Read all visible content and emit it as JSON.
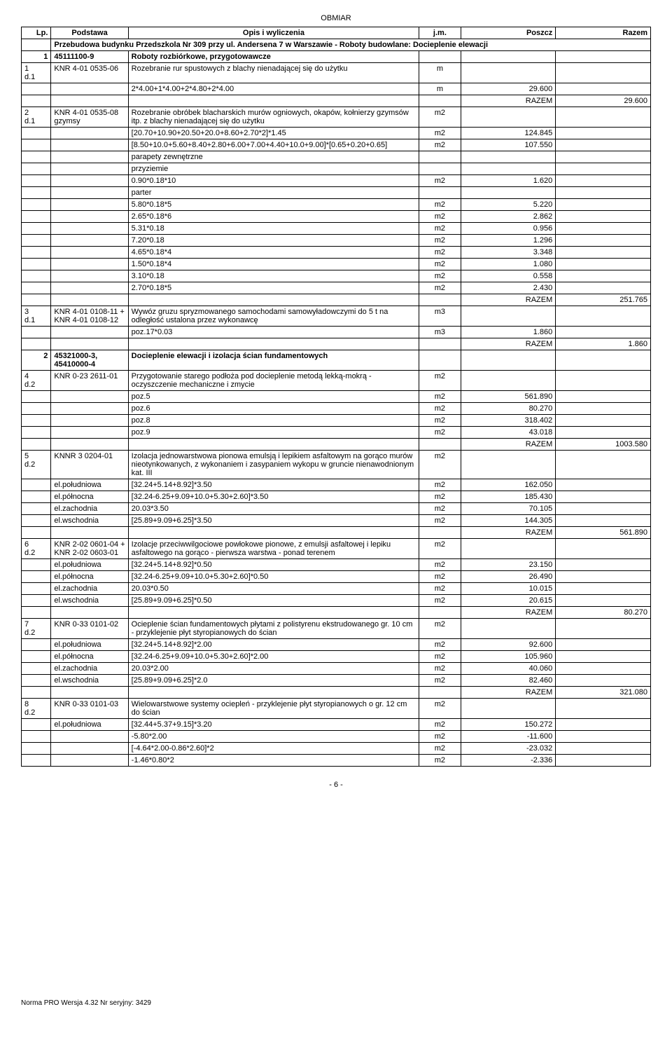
{
  "header": "OBMIAR",
  "columns": {
    "lp": "Lp.",
    "podstawa": "Podstawa",
    "opis": "Opis i wyliczenia",
    "jm": "j.m.",
    "poszcz": "Poszcz",
    "razem": "Razem"
  },
  "project_title": "Przebudowa budynku Przedszkola Nr 309 przy ul. Andersena 7 w Warszawie - Roboty budowlane: Docieplenie elewacji",
  "sections": [
    {
      "lp": "1",
      "podstawa": "45111100-9",
      "title": "Roboty rozbiórkowe, przygotowawcze"
    },
    {
      "lp": "2",
      "podstawa": "45321000-3, 45410000-4",
      "title": "Docieplenie elewacji i izolacja ścian fundamentowych"
    }
  ],
  "rows": [
    {
      "lp": "1",
      "dref": "d.1",
      "pod": "KNR 4-01 0535-06",
      "opis": "Rozebranie rur spustowych z blachy nienadającej się do użytku",
      "jm": "m",
      "lines": [
        {
          "t": "2*4.00+1*4.00+2*4.80+2*4.00",
          "jm": "m",
          "v": "29.600"
        }
      ],
      "razem": "29.600"
    },
    {
      "lp": "2",
      "dref": "d.1",
      "pod": "KNR 4-01 0535-08 gzymsy",
      "opis": "Rozebranie obróbek blacharskich murów ogniowych, okapów, kołnierzy gzymsów itp. z blachy nienadającej się do użytku",
      "jm": "m2",
      "lines": [
        {
          "t": "[20.70+10.90+20.50+20.0+8.60+2.70*2]*1.45",
          "jm": "m2",
          "v": "124.845"
        },
        {
          "t": "[8.50+10.0+5.60+8.40+2.80+6.00+7.00+4.40+10.0+9.00]*[0.65+0.20+0.65]",
          "jm": "m2",
          "v": "107.550"
        },
        {
          "t": "parapety zewnętrzne",
          "jm": "",
          "v": ""
        },
        {
          "t": "przyziemie",
          "jm": "",
          "v": ""
        },
        {
          "t": "0.90*0.18*10",
          "jm": "m2",
          "v": "1.620"
        },
        {
          "t": "parter",
          "jm": "",
          "v": ""
        },
        {
          "t": "5.80*0.18*5",
          "jm": "m2",
          "v": "5.220"
        },
        {
          "t": "2.65*0.18*6",
          "jm": "m2",
          "v": "2.862"
        },
        {
          "t": "5.31*0.18",
          "jm": "m2",
          "v": "0.956"
        },
        {
          "t": "7.20*0.18",
          "jm": "m2",
          "v": "1.296"
        },
        {
          "t": "4.65*0.18*4",
          "jm": "m2",
          "v": "3.348"
        },
        {
          "t": "1.50*0.18*4",
          "jm": "m2",
          "v": "1.080"
        },
        {
          "t": "3.10*0.18",
          "jm": "m2",
          "v": "0.558"
        },
        {
          "t": "2.70*0.18*5",
          "jm": "m2",
          "v": "2.430"
        }
      ],
      "razem": "251.765"
    },
    {
      "lp": "3",
      "dref": "d.1",
      "pod": "KNR 4-01 0108-11 + KNR 4-01 0108-12",
      "opis": "Wywóz gruzu spryzmowanego samochodami samowyładowczymi do 5 t na odległość ustalona przez wykonawcę",
      "jm": "m3",
      "lines": [
        {
          "t": "poz.17*0.03",
          "jm": "m3",
          "v": "1.860"
        }
      ],
      "razem": "1.860"
    },
    {
      "lp": "4",
      "dref": "d.2",
      "pod": "KNR 0-23 2611-01",
      "opis": "Przygotowanie starego podłoża pod docieplenie metodą lekką-mokrą - oczyszczenie mechaniczne i zmycie",
      "jm": "m2",
      "lines": [
        {
          "t": "poz.5",
          "jm": "m2",
          "v": "561.890"
        },
        {
          "t": "poz.6",
          "jm": "m2",
          "v": "80.270"
        },
        {
          "t": "poz.8",
          "jm": "m2",
          "v": "318.402"
        },
        {
          "t": "poz.9",
          "jm": "m2",
          "v": "43.018"
        }
      ],
      "razem": "1003.580"
    },
    {
      "lp": "5",
      "dref": "d.2",
      "pod": "KNNR 3 0204-01",
      "opis": "Izolacja jednowarstwowa pionowa emulsją i lepikiem asfaltowym na gorąco murów nieotynkowanych, z wykonaniem i zasypaniem wykopu w gruncie nienawodnionym kat. III",
      "jm": "m2",
      "sublabels": [
        {
          "lbl": "el.południowa",
          "t": "[32.24+5.14+8.92]*3.50",
          "jm": "m2",
          "v": "162.050"
        },
        {
          "lbl": "el.północna",
          "t": "[32.24-6.25+9.09+10.0+5.30+2.60]*3.50",
          "jm": "m2",
          "v": "185.430"
        },
        {
          "lbl": "el.zachodnia",
          "t": "20.03*3.50",
          "jm": "m2",
          "v": "70.105"
        },
        {
          "lbl": "el.wschodnia",
          "t": "[25.89+9.09+6.25]*3.50",
          "jm": "m2",
          "v": "144.305"
        }
      ],
      "razem": "561.890"
    },
    {
      "lp": "6",
      "dref": "d.2",
      "pod": "KNR 2-02 0601-04 + KNR 2-02 0603-01",
      "opis": "Izolacje przeciwwilgociowe powłokowe pionowe, z emulsji asfaltowej i lepiku asfaltowego na gorąco - pierwsza warstwa - ponad terenem",
      "jm": "m2",
      "sublabels": [
        {
          "lbl": "el.południowa",
          "t": "[32.24+5.14+8.92]*0.50",
          "jm": "m2",
          "v": "23.150"
        },
        {
          "lbl": "el.północna",
          "t": "[32.24-6.25+9.09+10.0+5.30+2.60]*0.50",
          "jm": "m2",
          "v": "26.490"
        },
        {
          "lbl": "el.zachodnia",
          "t": "20.03*0.50",
          "jm": "m2",
          "v": "10.015"
        },
        {
          "lbl": "el.wschodnia",
          "t": "[25.89+9.09+6.25]*0.50",
          "jm": "m2",
          "v": "20.615"
        }
      ],
      "razem": "80.270"
    },
    {
      "lp": "7",
      "dref": "d.2",
      "pod": "KNR 0-33 0101-02",
      "opis": "Ocieplenie ścian fundamentowych płytami z polistyrenu ekstrudowanego gr. 10 cm - przyklejenie płyt styropianowych do ścian",
      "jm": "m2",
      "sublabels": [
        {
          "lbl": "el.południowa",
          "t": "[32.24+5.14+8.92]*2.00",
          "jm": "m2",
          "v": "92.600"
        },
        {
          "lbl": "el.północna",
          "t": "[32.24-6.25+9.09+10.0+5.30+2.60]*2.00",
          "jm": "m2",
          "v": "105.960"
        },
        {
          "lbl": "el.zachodnia",
          "t": "20.03*2.00",
          "jm": "m2",
          "v": "40.060"
        },
        {
          "lbl": "el.wschodnia",
          "t": "[25.89+9.09+6.25]*2.0",
          "jm": "m2",
          "v": "82.460"
        }
      ],
      "razem": "321.080"
    },
    {
      "lp": "8",
      "dref": "d.2",
      "pod": "KNR 0-33 0101-03",
      "opis": "Wielowarstwowe systemy ociepleń - przyklejenie płyt styropianowych o gr. 12 cm do ścian",
      "jm": "m2",
      "sublabels": [
        {
          "lbl": "el.południowa",
          "t": "[32.44+5.37+9.15]*3.20",
          "jm": "m2",
          "v": "150.272"
        }
      ],
      "extra": [
        {
          "t": "-5.80*2.00",
          "jm": "m2",
          "v": "-11.600"
        },
        {
          "t": "[-4.64*2.00-0.86*2.60]*2",
          "jm": "m2",
          "v": "-23.032"
        },
        {
          "t": "-1.46*0.80*2",
          "jm": "m2",
          "v": "-2.336"
        }
      ]
    }
  ],
  "razem_label": "RAZEM",
  "page": "- 6 -",
  "footer": "Norma PRO Wersja 4.32 Nr seryjny: 3429"
}
